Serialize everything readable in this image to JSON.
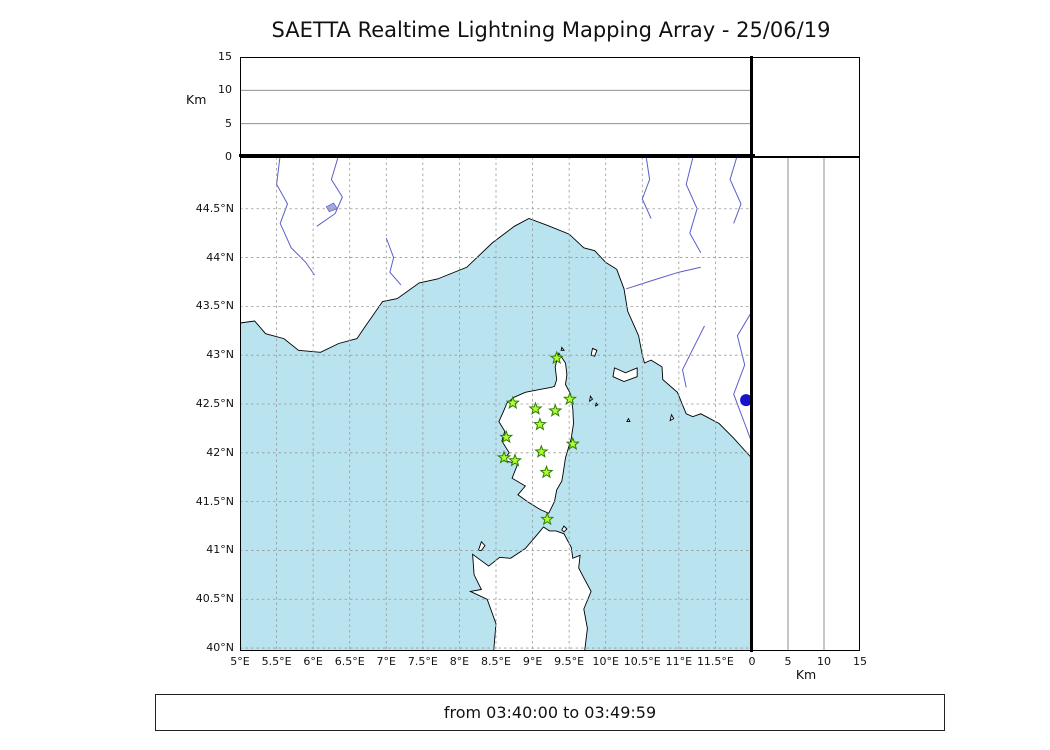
{
  "title": "SAETTA Realtime Lightning Mapping Array - 25/06/19",
  "footer": {
    "text": "from 03:40:00 to 03:49:59"
  },
  "chart_data": {
    "type": "scatter",
    "title": "SAETTA Realtime Lightning Mapping Array - 25/06/19",
    "subtitle": "from 03:40:00 to 03:49:59",
    "map_panel": {
      "lon_range": [
        5.0,
        12.0
      ],
      "lat_range": [
        39.97,
        45.03
      ],
      "lon_ticks": [
        5,
        5.5,
        6,
        6.5,
        7,
        7.5,
        8,
        8.5,
        9,
        9.5,
        10,
        10.5,
        11,
        11.5
      ],
      "lon_tick_labels": [
        "5°E",
        "5.5°E",
        "6°E",
        "6.5°E",
        "7°E",
        "7.5°E",
        "8°E",
        "8.5°E",
        "9°E",
        "9.5°E",
        "10°E",
        "10.5°E",
        "11°E",
        "11.5°E"
      ],
      "lat_ticks": [
        40,
        40.5,
        41,
        41.5,
        42,
        42.5,
        43,
        43.5,
        44,
        44.5
      ],
      "lat_tick_labels": [
        "40°N",
        "40.5°N",
        "41°N",
        "41.5°N",
        "42°N",
        "42.5°N",
        "43°N",
        "43.5°N",
        "44°N",
        "44.5°N"
      ],
      "grid": "dashed"
    },
    "altitude_panels": {
      "label": "Km",
      "range": [
        0,
        15
      ],
      "ticks": [
        0,
        5,
        10,
        15
      ],
      "inner_lines": [
        5,
        10
      ]
    },
    "stations": [
      {
        "lon": 9.33,
        "lat": 42.97
      },
      {
        "lon": 8.73,
        "lat": 42.51
      },
      {
        "lon": 9.04,
        "lat": 42.45
      },
      {
        "lon": 9.31,
        "lat": 42.43
      },
      {
        "lon": 9.51,
        "lat": 42.55
      },
      {
        "lon": 9.1,
        "lat": 42.29
      },
      {
        "lon": 8.64,
        "lat": 42.16
      },
      {
        "lon": 9.55,
        "lat": 42.09
      },
      {
        "lon": 8.61,
        "lat": 41.95
      },
      {
        "lon": 8.76,
        "lat": 41.92
      },
      {
        "lon": 9.12,
        "lat": 42.01
      },
      {
        "lon": 9.19,
        "lat": 41.8
      },
      {
        "lon": 9.2,
        "lat": 41.32
      }
    ],
    "sources": [
      {
        "lon": 11.92,
        "lat": 42.54
      }
    ],
    "colors": {
      "sea": "#b9e3ef",
      "land": "#ffffff",
      "coast": "#000000",
      "river": "#5a5fc8",
      "grid": "#999999",
      "station_fill": "#adff2f",
      "station_edge": "#2e7d00",
      "source": "#1414cc",
      "frame": "#000000",
      "panel_line": "#808080"
    },
    "basemap": {
      "land": [
        {
          "name": "mainland-france-italy",
          "points": [
            [
              5.0,
              43.33
            ],
            [
              5.2,
              43.35
            ],
            [
              5.35,
              43.22
            ],
            [
              5.6,
              43.17
            ],
            [
              5.8,
              43.05
            ],
            [
              6.1,
              43.03
            ],
            [
              6.35,
              43.12
            ],
            [
              6.6,
              43.17
            ],
            [
              6.7,
              43.28
            ],
            [
              6.95,
              43.55
            ],
            [
              7.15,
              43.58
            ],
            [
              7.45,
              43.74
            ],
            [
              7.7,
              43.78
            ],
            [
              8.1,
              43.9
            ],
            [
              8.45,
              44.15
            ],
            [
              8.75,
              44.32
            ],
            [
              8.95,
              44.4
            ],
            [
              9.2,
              44.33
            ],
            [
              9.5,
              44.24
            ],
            [
              9.7,
              44.1
            ],
            [
              9.85,
              44.07
            ],
            [
              10.0,
              43.95
            ],
            [
              10.15,
              43.88
            ],
            [
              10.25,
              43.68
            ],
            [
              10.3,
              43.45
            ],
            [
              10.45,
              43.2
            ],
            [
              10.5,
              43.0
            ],
            [
              10.53,
              42.92
            ],
            [
              10.62,
              42.95
            ],
            [
              10.77,
              42.88
            ],
            [
              10.78,
              42.75
            ],
            [
              10.98,
              42.62
            ],
            [
              11.1,
              42.4
            ],
            [
              11.19,
              42.37
            ],
            [
              11.3,
              42.4
            ],
            [
              11.55,
              42.3
            ],
            [
              11.75,
              42.15
            ],
            [
              12.05,
              41.9
            ],
            [
              12.05,
              45.1
            ],
            [
              4.95,
              45.1
            ]
          ]
        },
        {
          "name": "corsica",
          "points": [
            [
              9.36,
              43.02
            ],
            [
              9.45,
              42.92
            ],
            [
              9.47,
              42.8
            ],
            [
              9.45,
              42.7
            ],
            [
              9.52,
              42.6
            ],
            [
              9.55,
              42.45
            ],
            [
              9.56,
              42.3
            ],
            [
              9.53,
              42.15
            ],
            [
              9.45,
              41.95
            ],
            [
              9.42,
              41.8
            ],
            [
              9.4,
              41.71
            ],
            [
              9.33,
              41.62
            ],
            [
              9.3,
              41.5
            ],
            [
              9.22,
              41.38
            ],
            [
              9.1,
              41.42
            ],
            [
              8.93,
              41.5
            ],
            [
              8.8,
              41.57
            ],
            [
              8.9,
              41.66
            ],
            [
              8.72,
              41.74
            ],
            [
              8.8,
              41.89
            ],
            [
              8.6,
              41.92
            ],
            [
              8.68,
              42.0
            ],
            [
              8.58,
              42.12
            ],
            [
              8.62,
              42.22
            ],
            [
              8.54,
              42.32
            ],
            [
              8.6,
              42.42
            ],
            [
              8.65,
              42.51
            ],
            [
              8.75,
              42.57
            ],
            [
              8.9,
              42.62
            ],
            [
              9.1,
              42.65
            ],
            [
              9.25,
              42.67
            ],
            [
              9.3,
              42.68
            ],
            [
              9.33,
              42.75
            ],
            [
              9.31,
              42.88
            ],
            [
              9.34,
              42.97
            ]
          ]
        },
        {
          "name": "sardinia",
          "points": [
            [
              8.46,
              39.9
            ],
            [
              8.5,
              40.25
            ],
            [
              8.38,
              40.5
            ],
            [
              8.15,
              40.58
            ],
            [
              8.3,
              40.6
            ],
            [
              8.2,
              40.75
            ],
            [
              8.18,
              40.96
            ],
            [
              8.4,
              40.84
            ],
            [
              8.55,
              40.93
            ],
            [
              8.7,
              40.92
            ],
            [
              8.9,
              41.02
            ],
            [
              9.05,
              41.15
            ],
            [
              9.15,
              41.24
            ],
            [
              9.23,
              41.2
            ],
            [
              9.32,
              41.2
            ],
            [
              9.43,
              41.17
            ],
            [
              9.53,
              41.03
            ],
            [
              9.55,
              40.92
            ],
            [
              9.65,
              40.95
            ],
            [
              9.63,
              40.82
            ],
            [
              9.7,
              40.72
            ],
            [
              9.8,
              40.58
            ],
            [
              9.7,
              40.4
            ],
            [
              9.75,
              40.2
            ],
            [
              9.7,
              39.9
            ]
          ]
        },
        {
          "name": "elba",
          "points": [
            [
              10.1,
              42.78
            ],
            [
              10.12,
              42.87
            ],
            [
              10.27,
              42.82
            ],
            [
              10.43,
              42.87
            ],
            [
              10.43,
              42.78
            ],
            [
              10.25,
              42.73
            ]
          ]
        },
        {
          "name": "asinara",
          "points": [
            [
              8.26,
              41.0
            ],
            [
              8.3,
              41.09
            ],
            [
              8.35,
              41.05
            ],
            [
              8.3,
              41.0
            ]
          ]
        },
        {
          "name": "capraia",
          "points": [
            [
              9.8,
              43.0
            ],
            [
              9.82,
              43.07
            ],
            [
              9.88,
              43.05
            ],
            [
              9.85,
              42.99
            ]
          ]
        },
        {
          "name": "giraglia",
          "points": [
            [
              9.39,
              43.05
            ],
            [
              9.4,
              43.08
            ],
            [
              9.43,
              43.05
            ]
          ]
        },
        {
          "name": "maddalena",
          "points": [
            [
              9.4,
              41.21
            ],
            [
              9.43,
              41.25
            ],
            [
              9.47,
              41.22
            ],
            [
              9.43,
              41.19
            ]
          ]
        },
        {
          "name": "islet-a",
          "points": [
            [
              9.78,
              42.53
            ],
            [
              9.79,
              42.58
            ],
            [
              9.82,
              42.55
            ]
          ]
        },
        {
          "name": "islet-b",
          "points": [
            [
              9.86,
              42.48
            ],
            [
              9.87,
              42.51
            ],
            [
              9.89,
              42.49
            ]
          ]
        },
        {
          "name": "montecristo",
          "points": [
            [
              10.29,
              42.32
            ],
            [
              10.31,
              42.35
            ],
            [
              10.33,
              42.32
            ]
          ]
        },
        {
          "name": "giglio",
          "points": [
            [
              10.88,
              42.33
            ],
            [
              10.9,
              42.39
            ],
            [
              10.93,
              42.35
            ]
          ]
        }
      ],
      "lakes": [
        {
          "name": "lake-serre-poncon",
          "points": [
            [
              6.18,
              44.52
            ],
            [
              6.28,
              44.56
            ],
            [
              6.33,
              44.5
            ],
            [
              6.22,
              44.47
            ]
          ]
        }
      ],
      "rivers": [
        {
          "name": "durance",
          "points": [
            [
              5.55,
              45.05
            ],
            [
              5.5,
              44.75
            ],
            [
              5.65,
              44.55
            ],
            [
              5.55,
              44.35
            ],
            [
              5.7,
              44.1
            ],
            [
              5.9,
              43.95
            ],
            [
              6.02,
              43.82
            ]
          ]
        },
        {
          "name": "durance-tributary",
          "points": [
            [
              6.35,
              45.05
            ],
            [
              6.25,
              44.8
            ],
            [
              6.4,
              44.62
            ],
            [
              6.3,
              44.45
            ],
            [
              6.05,
              44.32
            ]
          ]
        },
        {
          "name": "var",
          "points": [
            [
              7.0,
              44.2
            ],
            [
              7.1,
              44.0
            ],
            [
              7.05,
              43.85
            ],
            [
              7.2,
              43.72
            ]
          ]
        },
        {
          "name": "po-tributary-1",
          "points": [
            [
              10.55,
              45.05
            ],
            [
              10.6,
              44.8
            ],
            [
              10.5,
              44.6
            ],
            [
              10.62,
              44.4
            ]
          ]
        },
        {
          "name": "reno",
          "points": [
            [
              11.2,
              45.05
            ],
            [
              11.1,
              44.75
            ],
            [
              11.25,
              44.5
            ],
            [
              11.15,
              44.25
            ],
            [
              11.3,
              44.05
            ]
          ]
        },
        {
          "name": "po-tributary-2",
          "points": [
            [
              11.8,
              45.05
            ],
            [
              11.7,
              44.8
            ],
            [
              11.85,
              44.55
            ],
            [
              11.75,
              44.35
            ]
          ]
        },
        {
          "name": "arno",
          "points": [
            [
              11.3,
              43.9
            ],
            [
              11.0,
              43.85
            ],
            [
              10.7,
              43.78
            ],
            [
              10.45,
              43.72
            ],
            [
              10.28,
              43.68
            ]
          ]
        },
        {
          "name": "tiber",
          "points": [
            [
              12.0,
              43.45
            ],
            [
              11.8,
              43.2
            ],
            [
              11.9,
              42.9
            ],
            [
              11.75,
              42.6
            ],
            [
              11.9,
              42.3
            ],
            [
              12.0,
              42.1
            ]
          ]
        },
        {
          "name": "ombrone",
          "points": [
            [
              11.35,
              43.3
            ],
            [
              11.15,
              43.0
            ],
            [
              11.05,
              42.85
            ],
            [
              11.1,
              42.67
            ]
          ]
        }
      ]
    }
  }
}
